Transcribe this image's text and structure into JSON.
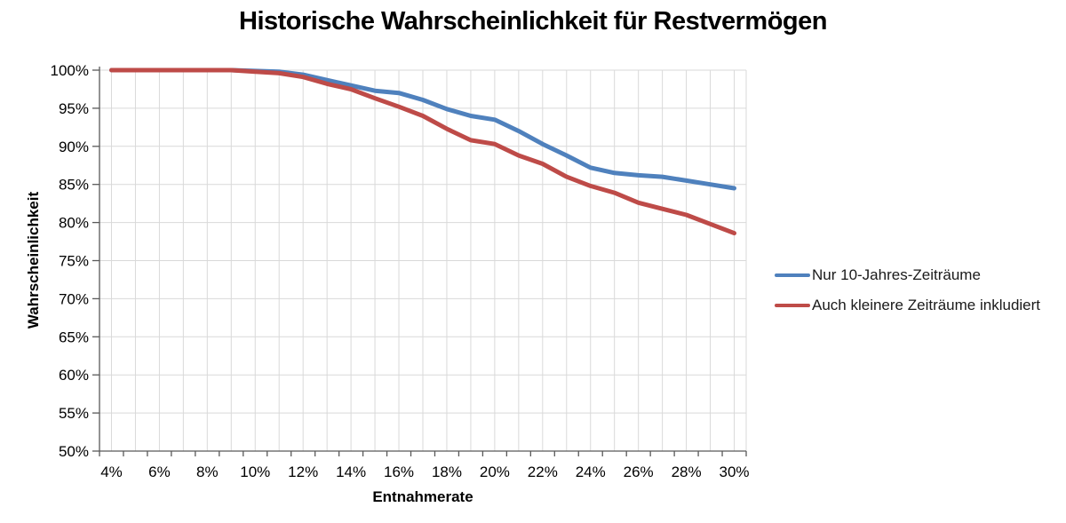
{
  "chart_data": {
    "type": "line",
    "title": "Historische Wahrscheinlichkeit für Restvermögen",
    "xlabel": "Entnahmerate",
    "ylabel": "Wahrscheinlichkeit",
    "xlim": [
      3.5,
      30.5
    ],
    "ylim": [
      50,
      100
    ],
    "grid": true,
    "legend_position": "right",
    "x": [
      4,
      5,
      6,
      7,
      8,
      9,
      10,
      11,
      12,
      13,
      14,
      15,
      16,
      17,
      18,
      19,
      20,
      21,
      22,
      23,
      24,
      25,
      26,
      27,
      28,
      29,
      30
    ],
    "series": [
      {
        "name": "Nur 10-Jahres-Zeiträume",
        "color": "#4F81BD",
        "values": [
          100,
          100,
          100,
          100,
          100,
          100,
          99.9,
          99.8,
          99.4,
          98.7,
          98.0,
          97.3,
          97.0,
          96.1,
          94.9,
          94.0,
          93.5,
          92.0,
          90.3,
          88.8,
          87.2,
          86.5,
          86.2,
          86.0,
          85.5,
          85.0,
          84.5
        ]
      },
      {
        "name": "Auch kleinere Zeiträume inkludiert",
        "color": "#BE4B48",
        "values": [
          100,
          100,
          100,
          100,
          100,
          100,
          99.8,
          99.6,
          99.1,
          98.2,
          97.5,
          96.3,
          95.2,
          94.0,
          92.3,
          90.8,
          90.3,
          88.8,
          87.7,
          86.0,
          84.8,
          83.9,
          82.6,
          81.8,
          81.0,
          79.8,
          78.6
        ]
      }
    ],
    "x_ticks": {
      "values": [
        4,
        6,
        8,
        10,
        12,
        14,
        16,
        18,
        20,
        22,
        24,
        26,
        28,
        30
      ],
      "labels": [
        "4%",
        "6%",
        "8%",
        "10%",
        "12%",
        "14%",
        "16%",
        "18%",
        "20%",
        "22%",
        "24%",
        "26%",
        "28%",
        "30%"
      ]
    },
    "y_ticks": {
      "values": [
        100,
        95,
        90,
        85,
        80,
        75,
        70,
        65,
        60,
        55,
        50
      ],
      "labels": [
        "100%",
        "95%",
        "90%",
        "85%",
        "80%",
        "75%",
        "70%",
        "65%",
        "60%",
        "55%",
        "50%"
      ]
    },
    "colors": {
      "series_blue": "#4F81BD",
      "series_red": "#BE4B48",
      "gridline": "#D9D9D9",
      "axis": "#595959",
      "tick_label": "#000000"
    }
  }
}
